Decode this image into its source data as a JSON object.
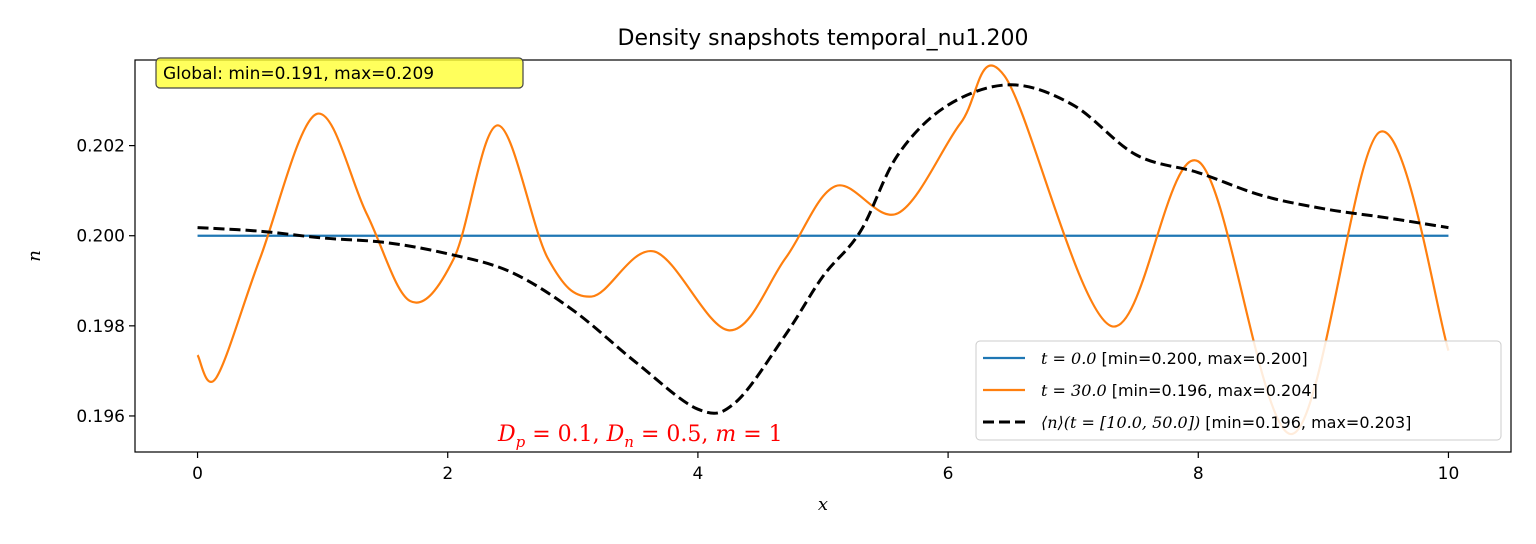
{
  "chart_data": {
    "type": "line",
    "title": "Density snapshots temporal_nu1.200",
    "xlabel": "x",
    "ylabel": "n",
    "xlim": [
      -0.5,
      10.5
    ],
    "ylim": [
      0.1952,
      0.2039
    ],
    "xticks": [
      0,
      2,
      4,
      6,
      8,
      10
    ],
    "xtick_labels": [
      "0",
      "2",
      "4",
      "6",
      "8",
      "10"
    ],
    "yticks": [
      0.196,
      0.198,
      0.2,
      0.202
    ],
    "ytick_labels": [
      "0.196",
      "0.198",
      "0.200",
      "0.202"
    ],
    "grid": false,
    "legend_position": "lower-right",
    "series": [
      {
        "name_prefix": "t = 0.0",
        "name_suffix": " [min=0.200, max=0.200]",
        "color": "#1f77b4",
        "dash": "solid",
        "x": [
          0,
          10
        ],
        "y": [
          0.2,
          0.2
        ]
      },
      {
        "name_prefix": "t = 30.0",
        "name_suffix": " [min=0.196, max=0.204]",
        "color": "#ff7f0e",
        "dash": "solid",
        "x": [
          0,
          0.15,
          0.5,
          0.95,
          1.35,
          1.7,
          2.05,
          2.4,
          2.8,
          3.15,
          3.65,
          4.25,
          4.7,
          5.1,
          5.6,
          6.1,
          6.45,
          7.3,
          8.0,
          8.75,
          9.45,
          10
        ],
        "y": [
          0.19735,
          0.19685,
          0.1995,
          0.2027,
          0.2005,
          0.19855,
          0.1995,
          0.20245,
          0.1995,
          0.19865,
          0.19965,
          0.1979,
          0.1995,
          0.2011,
          0.2005,
          0.2025,
          0.20355,
          0.198,
          0.20165,
          0.1956,
          0.2023,
          0.19745
        ]
      },
      {
        "name_prefix": "⟨n⟩(t = [10.0, 50.0])",
        "name_suffix": " [min=0.196, max=0.203]",
        "color": "#000000",
        "dash": "dashed",
        "x": [
          0,
          0.5,
          1.0,
          1.5,
          2.0,
          2.5,
          3.0,
          3.5,
          4.0,
          4.3,
          4.7,
          5.0,
          5.3,
          5.6,
          6.0,
          6.5,
          7.0,
          7.5,
          8.0,
          8.5,
          9.0,
          9.5,
          10
        ],
        "y": [
          0.20018,
          0.2001,
          0.19995,
          0.19985,
          0.1996,
          0.1992,
          0.19835,
          0.1972,
          0.19615,
          0.1963,
          0.1978,
          0.1991,
          0.2001,
          0.2018,
          0.2029,
          0.20335,
          0.2029,
          0.2018,
          0.2014,
          0.2009,
          0.2006,
          0.2004,
          0.20018
        ]
      }
    ],
    "annotations": {
      "global_box": "Global: min=0.191, max=0.209",
      "global_box_color": "#ffff33",
      "params_text": "Dp = 0.1, Dn = 0.5, m = 1",
      "params_color": "#ff0000"
    }
  }
}
